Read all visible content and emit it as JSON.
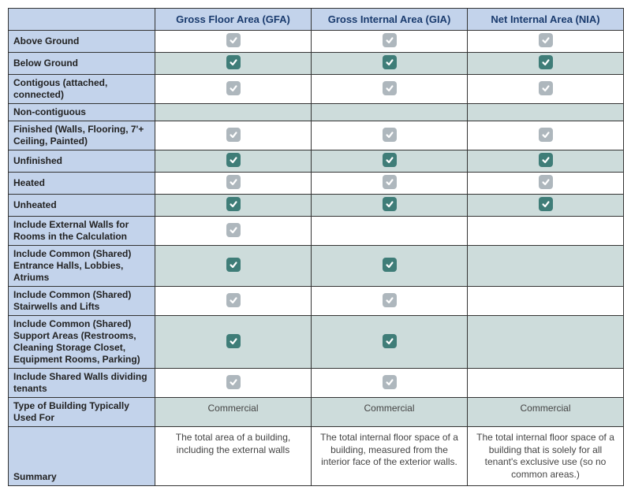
{
  "columns": [
    {
      "key": "gfa",
      "label": "Gross Floor Area (GFA)"
    },
    {
      "key": "gia",
      "label": "Gross Internal Area (GIA)"
    },
    {
      "key": "nia",
      "label": "Net Internal Area (NIA)"
    }
  ],
  "rows": [
    {
      "label": "Above Ground",
      "alt": false,
      "cells": {
        "gfa": "light",
        "gia": "light",
        "nia": "light"
      }
    },
    {
      "label": "Below Ground",
      "alt": true,
      "cells": {
        "gfa": "dark",
        "gia": "dark",
        "nia": "dark"
      }
    },
    {
      "label": "Contigous (attached, connected)",
      "alt": false,
      "cells": {
        "gfa": "light",
        "gia": "light",
        "nia": "light"
      }
    },
    {
      "label": "Non-contiguous",
      "alt": true,
      "cells": {
        "gfa": "",
        "gia": "",
        "nia": ""
      }
    },
    {
      "label": "Finished (Walls, Flooring, 7'+ Ceiling, Painted)",
      "alt": false,
      "cells": {
        "gfa": "light",
        "gia": "light",
        "nia": "light"
      }
    },
    {
      "label": "Unfinished",
      "alt": true,
      "cells": {
        "gfa": "dark",
        "gia": "dark",
        "nia": "dark"
      }
    },
    {
      "label": "Heated",
      "alt": false,
      "cells": {
        "gfa": "light",
        "gia": "light",
        "nia": "light"
      }
    },
    {
      "label": "Unheated",
      "alt": true,
      "cells": {
        "gfa": "dark",
        "gia": "dark",
        "nia": "dark"
      }
    },
    {
      "label": "Include External Walls for Rooms in the Calculation",
      "alt": false,
      "cells": {
        "gfa": "light",
        "gia": "",
        "nia": ""
      }
    },
    {
      "label": "Include Common (Shared) Entrance Halls, Lobbies, Atriums",
      "alt": true,
      "cells": {
        "gfa": "dark",
        "gia": "dark",
        "nia": ""
      }
    },
    {
      "label": "Include Common (Shared) Stairwells and Lifts",
      "alt": false,
      "cells": {
        "gfa": "light",
        "gia": "light",
        "nia": ""
      }
    },
    {
      "label": "Include Common (Shared) Support Areas (Restrooms, Cleaning Storage Closet, Equipment Rooms, Parking)",
      "alt": true,
      "cells": {
        "gfa": "dark",
        "gia": "dark",
        "nia": ""
      }
    },
    {
      "label": "Include Shared Walls dividing tenants",
      "alt": false,
      "cells": {
        "gfa": "light",
        "gia": "light",
        "nia": ""
      }
    }
  ],
  "footer": {
    "typically_label": "Type of Building Typically Used For",
    "typically": {
      "gfa": "Commercial",
      "gia": "Commercial",
      "nia": "Commercial"
    },
    "summary_label": "Summary",
    "summary": {
      "gfa": "The total area of a building, including the external walls",
      "gia": "The total internal floor space of a building, measured from the interior face of the exterior walls.",
      "nia": "The total internal floor space of a building that is solely for all tenant's exclusive use (so no common areas.)"
    }
  },
  "colors": {
    "header_bg": "#c3d3eb",
    "header_text": "#1a3b6e",
    "alt_row_bg": "#cddcdb",
    "checkbox_light": "#aeb7bd",
    "checkbox_dark": "#3f7d78",
    "border": "#333333"
  }
}
